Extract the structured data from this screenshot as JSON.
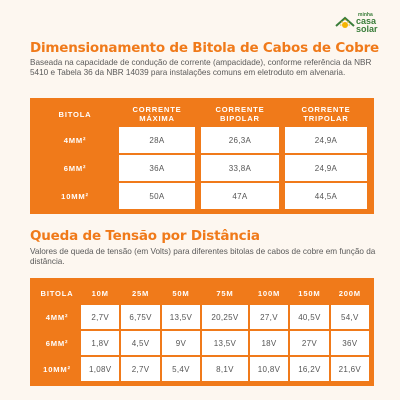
{
  "logo": {
    "small": "minha",
    "line1": "casa",
    "line2": "solar"
  },
  "section1": {
    "title": "Dimensionamento de Bitola de Cabos de Cobre",
    "description": "Baseada na capacidade de condução de corrente (ampacidade), conforme referência da NBR 5410 e Tabela 36 da NBR 14039 para instalações comuns em eletroduto em alvenaria.",
    "headers": [
      "BITOLA",
      "CORRENTE MÁXIMA",
      "CORRENTE BIPOLAR",
      "CORRENTE TRIPOLAR"
    ],
    "rows": [
      [
        "4MM²",
        "28A",
        "26,3A",
        "24,9A"
      ],
      [
        "6MM²",
        "36A",
        "33,8A",
        "24,9A"
      ],
      [
        "10MM²",
        "50A",
        "47A",
        "44,5A"
      ]
    ]
  },
  "section2": {
    "title": "Queda de Tensão por Distância",
    "description": "Valores de queda de tensão (em Volts) para diferentes bitolas de cabos de cobre em função da distância.",
    "headers": [
      "BITOLA",
      "10M",
      "25M",
      "50M",
      "75M",
      "100M",
      "150M",
      "200M"
    ],
    "rows": [
      [
        "4MM²",
        "2,7V",
        "6,75V",
        "13,5V",
        "20,25V",
        "27,V",
        "40,5V",
        "54,V"
      ],
      [
        "6MM²",
        "1,8V",
        "4,5V",
        "9V",
        "13,5V",
        "18V",
        "27V",
        "36V"
      ],
      [
        "10MM²",
        "1,08V",
        "2,7V",
        "5,4V",
        "8,1V",
        "10,8V",
        "16,2V",
        "21,6V"
      ]
    ]
  }
}
